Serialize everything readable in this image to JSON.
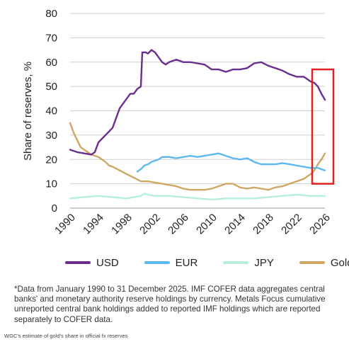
{
  "chart_data": {
    "type": "line",
    "title": "",
    "xlabel": "",
    "ylabel": "Share of reserves, %",
    "xlim": [
      1990,
      2026
    ],
    "ylim": [
      0,
      80
    ],
    "x_ticks": [
      "1990",
      "1994",
      "1998",
      "2002",
      "2006",
      "2010",
      "2014",
      "2018",
      "2022",
      "2026"
    ],
    "y_ticks": [
      "0",
      "10",
      "20",
      "30",
      "40",
      "50",
      "60",
      "70",
      "80"
    ],
    "grid": "horizontal",
    "legend_position": "bottom",
    "highlight_box": {
      "x_range": [
        2024.2,
        2027.2
      ],
      "y_range": [
        10,
        57
      ],
      "color": "#e02020"
    },
    "series": [
      {
        "name": "USD",
        "color": "#6b2d8e",
        "x": [
          1990,
          1990.5,
          1991,
          1992,
          1993,
          1993.5,
          1994,
          1995,
          1996,
          1996.5,
          1997,
          1997.5,
          1998,
          1998.5,
          1999,
          1999.5,
          2000,
          2000.2,
          2000.3,
          2000.7,
          2001,
          2001.5,
          2002,
          2002.5,
          2003,
          2003.5,
          2004,
          2005,
          2006,
          2007,
          2008,
          2009,
          2010,
          2011,
          2012,
          2013,
          2014,
          2015,
          2016,
          2017,
          2018,
          2019,
          2020,
          2021,
          2022,
          2023,
          2023.5,
          2024,
          2024.5,
          2025,
          2025.5,
          2026
        ],
        "y": [
          24,
          23.5,
          23,
          22.5,
          22,
          23,
          27,
          30,
          33,
          37,
          41,
          43,
          45,
          47,
          47,
          49,
          50,
          64,
          64,
          64,
          63.5,
          65,
          64,
          62,
          60,
          59,
          60,
          61,
          60,
          60,
          59.5,
          59,
          57,
          57,
          56,
          57,
          57,
          57.5,
          59.5,
          60,
          58.5,
          57.5,
          56.5,
          55,
          54,
          54,
          53,
          52,
          51.5,
          50,
          47,
          44.5
        ]
      },
      {
        "name": "EUR",
        "color": "#5bb8f0",
        "x": [
          1999.5,
          2000,
          2000.5,
          2001,
          2001.5,
          2002,
          2002.5,
          2003,
          2004,
          2005,
          2006,
          2007,
          2008,
          2009,
          2010,
          2011,
          2012,
          2013,
          2014,
          2015,
          2016,
          2017,
          2018,
          2019,
          2020,
          2021,
          2022,
          2023,
          2024,
          2025,
          2025.5,
          2026
        ],
        "y": [
          15,
          16,
          17.5,
          18,
          19,
          19.5,
          20,
          21,
          21,
          20.5,
          21,
          21.5,
          21,
          21.5,
          22,
          22.5,
          21.5,
          20.5,
          20,
          20.5,
          19,
          18,
          18,
          18,
          18.5,
          18,
          17.5,
          17,
          16.5,
          16.5,
          16,
          15.5
        ]
      },
      {
        "name": "JPY",
        "color": "#b6f0dc",
        "x": [
          1990,
          1992,
          1994,
          1996,
          1998,
          2000,
          2000.5,
          2001,
          2002,
          2004,
          2006,
          2008,
          2010,
          2012,
          2014,
          2016,
          2018,
          2020,
          2022,
          2024,
          2026
        ],
        "y": [
          4,
          4.5,
          5,
          4.5,
          4,
          5,
          6,
          5.5,
          5,
          5,
          4.5,
          4,
          3.5,
          4,
          4,
          4,
          4.5,
          5,
          5.5,
          5,
          5
        ]
      },
      {
        "name": "Gold",
        "color": "#d0a663",
        "x": [
          1990,
          1990.5,
          1991,
          1991.5,
          1992,
          1993,
          1994,
          1995,
          1995.5,
          1996,
          1997,
          1998,
          1999,
          2000,
          2001,
          2002,
          2003,
          2004,
          2005,
          2006,
          2007,
          2008,
          2009,
          2010,
          2011,
          2012,
          2013,
          2014,
          2015,
          2016,
          2017,
          2018,
          2019,
          2020,
          2021,
          2022,
          2023,
          2023.5,
          2024,
          2024.5,
          2025,
          2025.5,
          2026
        ],
        "y": [
          35,
          31,
          28,
          25,
          24,
          22,
          21,
          19,
          17.5,
          17,
          15.5,
          14,
          12.5,
          11,
          11,
          10.5,
          10,
          9.5,
          9,
          8,
          7.5,
          7.5,
          7.5,
          8,
          9,
          10,
          10,
          8.5,
          8,
          8.5,
          8,
          7.5,
          8.5,
          9,
          10,
          11,
          12,
          13,
          14,
          15.5,
          18,
          20,
          22.5
        ]
      }
    ]
  },
  "footnote": "*Data from January 1990 to 31 December 2025. IMF COFER data aggregates central banks' and monetary authority reserve holdings by currency. Metals Focus cumulative unreported central bank holdings added to reported IMF holdings which are reported separately to COFER data.",
  "caption": "WGC's estimate of gold's share in official fx reserves"
}
